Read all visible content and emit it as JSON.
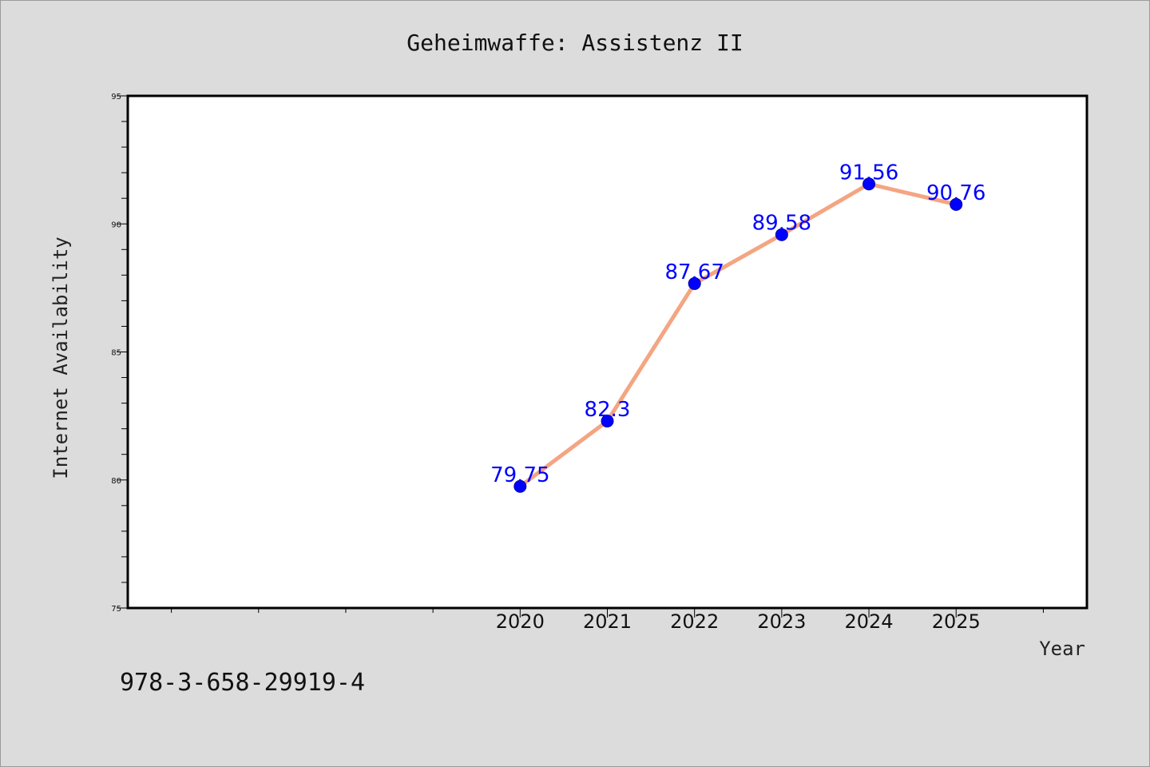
{
  "chart_data": {
    "type": "line",
    "title": "Geheimwaffe: Assistenz II",
    "xlabel": "Year",
    "ylabel": "Internet Availability",
    "x": [
      2020,
      2021,
      2022,
      2023,
      2024,
      2025
    ],
    "series": [
      {
        "values": [
          79.75,
          82.3,
          87.67,
          89.58,
          91.56,
          90.76
        ]
      }
    ],
    "data_labels": [
      "79.75",
      "82.3",
      "87.67",
      "89.58",
      "91.56",
      "90.76"
    ],
    "xlim": [
      2015.5,
      2026.5
    ],
    "ylim": [
      75,
      95
    ],
    "yticks": [
      75,
      80,
      85,
      90,
      95
    ],
    "xticks": [
      2020,
      2021,
      2022,
      2023,
      2024,
      2025
    ],
    "grid": false,
    "legend": "none",
    "colors": {
      "line": "#f4a582",
      "marker": "#0000ff",
      "label": "#0000ff",
      "plot_bg": "#ffffff",
      "page_bg": "#dcdcdc"
    }
  },
  "footer": {
    "isbn": "978-3-658-29919-4"
  }
}
